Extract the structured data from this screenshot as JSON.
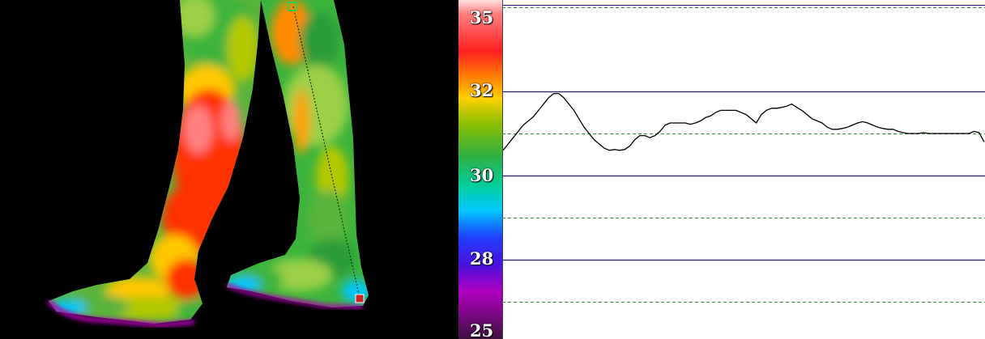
{
  "chart_data": {
    "type": "line",
    "title": "",
    "xlabel": "",
    "ylabel": "",
    "ylim": [
      25,
      35
    ],
    "color_scale_labels": [
      "35",
      "32",
      "30",
      "28",
      "25"
    ],
    "color_scale_values": [
      35,
      32,
      30,
      28,
      25
    ],
    "grid": {
      "solid_lines": [
        32,
        30,
        28
      ],
      "dashed_lines": [
        34,
        31,
        29,
        27
      ]
    },
    "series": [
      {
        "values": [
          30.6,
          30.75,
          30.9,
          31.05,
          31.2,
          31.3,
          31.4,
          31.55,
          31.7,
          31.85,
          31.95,
          31.95,
          31.85,
          31.7,
          31.55,
          31.35,
          31.15,
          31.0,
          30.85,
          30.75,
          30.65,
          30.6,
          30.62,
          30.6,
          30.62,
          30.7,
          30.85,
          30.95,
          30.95,
          30.9,
          30.95,
          31.05,
          31.2,
          31.25,
          31.25,
          31.25,
          31.25,
          31.22,
          31.25,
          31.3,
          31.38,
          31.42,
          31.5,
          31.55,
          31.55,
          31.55,
          31.55,
          31.5,
          31.45,
          31.35,
          31.25,
          31.45,
          31.55,
          31.6,
          31.6,
          31.62,
          31.65,
          31.7,
          31.62,
          31.55,
          31.45,
          31.35,
          31.3,
          31.25,
          31.15,
          31.1,
          31.1,
          31.12,
          31.15,
          31.2,
          31.25,
          31.28,
          31.25,
          31.2,
          31.15,
          31.12,
          31.1,
          31.1,
          31.05,
          31.02,
          31.0,
          31.0,
          31.0,
          31.02,
          31.0,
          31.0,
          31.0,
          31.0,
          31.0,
          31.0,
          31.0,
          31.0,
          31.0,
          31.05,
          31.02,
          30.8
        ]
      }
    ]
  },
  "colors": {
    "curve": "#000000",
    "solid_grid": "#1f1f7a",
    "dashed_grid": "#2e8b2e",
    "plot_background": "#ffffff",
    "thermal_background": "#000000",
    "profile_marker_start": "#33cc55",
    "profile_marker_end": "#cc2222"
  },
  "thermal_palette": [
    "#5a0a5a",
    "#b000b0",
    "#3030ff",
    "#00c8ff",
    "#00d8a0",
    "#3cb43c",
    "#b4c800",
    "#ffc800",
    "#ff3000",
    "#ff8080",
    "#ffe0e0"
  ]
}
